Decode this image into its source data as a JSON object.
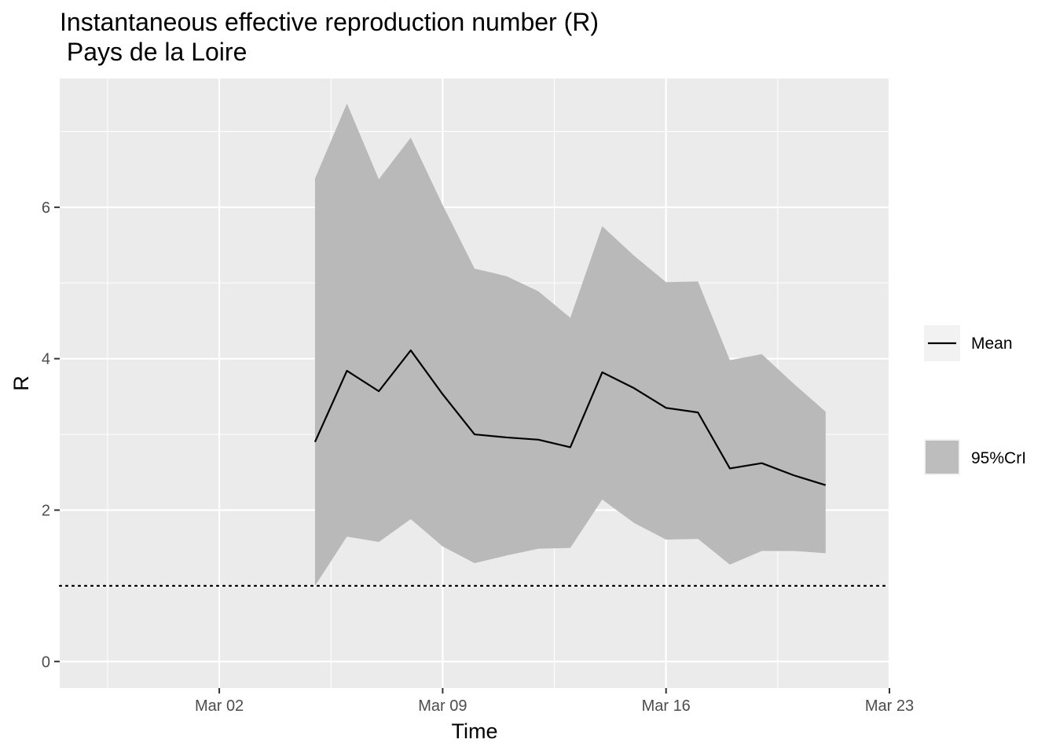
{
  "chart_data": {
    "type": "line",
    "title": "Instantaneous effective reproduction number (R)",
    "subtitle": " Pays de la Loire",
    "xlabel": "Time",
    "ylabel": "R",
    "x_tick_labels": [
      "Mar 02",
      "Mar 09",
      "Mar 16",
      "Mar 23"
    ],
    "x_tick_dates": [
      "2020-03-02",
      "2020-03-09",
      "2020-03-16",
      "2020-03-23"
    ],
    "y_ticks": [
      0,
      2,
      4,
      6
    ],
    "xlim": [
      "2020-02-26",
      "2020-03-23"
    ],
    "ylim": [
      -0.35,
      7.7
    ],
    "grid": true,
    "legend_position": "right",
    "reference_line": {
      "y": 1,
      "style": "dotted"
    },
    "x": [
      "2020-03-05",
      "2020-03-06",
      "2020-03-07",
      "2020-03-08",
      "2020-03-09",
      "2020-03-10",
      "2020-03-11",
      "2020-03-12",
      "2020-03-13",
      "2020-03-14",
      "2020-03-15",
      "2020-03-16",
      "2020-03-17",
      "2020-03-18",
      "2020-03-19",
      "2020-03-20",
      "2020-03-21"
    ],
    "series": [
      {
        "name": "Mean",
        "kind": "line",
        "color": "#000000",
        "values": [
          2.9,
          3.84,
          3.57,
          4.11,
          3.53,
          3.0,
          2.96,
          2.93,
          2.83,
          3.82,
          3.61,
          3.35,
          3.29,
          2.55,
          2.62,
          2.46,
          2.33
        ]
      },
      {
        "name": "95%CrI",
        "kind": "ribbon",
        "color": "#b3b3b3",
        "lower": [
          1.0,
          1.65,
          1.58,
          1.88,
          1.52,
          1.3,
          1.4,
          1.49,
          1.5,
          2.14,
          1.83,
          1.61,
          1.62,
          1.28,
          1.46,
          1.46,
          1.43
        ],
        "upper": [
          6.38,
          7.37,
          6.37,
          6.92,
          6.03,
          5.19,
          5.09,
          4.89,
          4.54,
          5.75,
          5.36,
          5.01,
          5.02,
          3.98,
          4.06,
          3.67,
          3.3
        ]
      }
    ]
  }
}
